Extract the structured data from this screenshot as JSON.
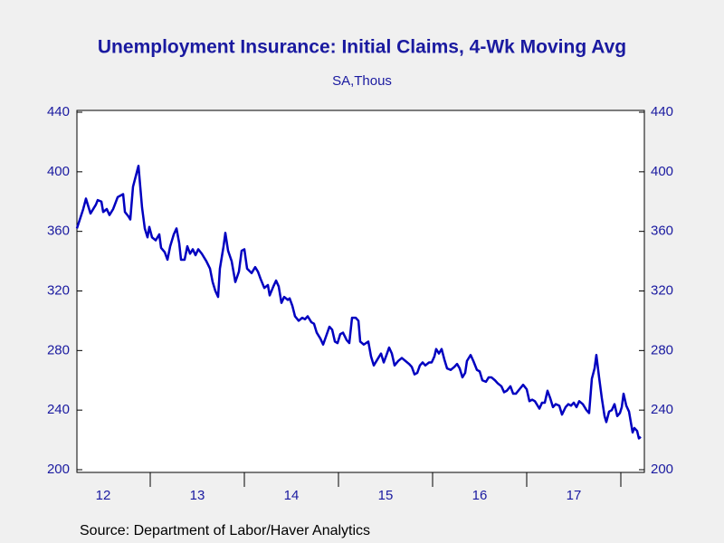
{
  "chart_data": {
    "type": "line",
    "title": "Unemployment Insurance: Initial Claims, 4-Wk Moving Avg",
    "subtitle": "SA,Thous",
    "source": "Source:  Department of Labor/Haver Analytics",
    "x": [
      12.221,
      12.288,
      12.317,
      12.365,
      12.423,
      12.442,
      12.481,
      12.5,
      12.538,
      12.567,
      12.606,
      12.654,
      12.712,
      12.731,
      12.769,
      12.788,
      12.817,
      12.875,
      12.913,
      12.942,
      12.971,
      12.99,
      13.019,
      13.058,
      13.096,
      13.115,
      13.154,
      13.183,
      13.212,
      13.25,
      13.279,
      13.308,
      13.327,
      13.365,
      13.394,
      13.423,
      13.452,
      13.481,
      13.51,
      13.548,
      13.596,
      13.635,
      13.663,
      13.692,
      13.721,
      13.74,
      13.779,
      13.798,
      13.827,
      13.865,
      13.904,
      13.942,
      13.971,
      14.0,
      14.029,
      14.077,
      14.115,
      14.144,
      14.173,
      14.212,
      14.25,
      14.269,
      14.308,
      14.337,
      14.365,
      14.394,
      14.423,
      14.462,
      14.481,
      14.51,
      14.538,
      14.577,
      14.615,
      14.644,
      14.673,
      14.712,
      14.74,
      14.769,
      14.808,
      14.837,
      14.865,
      14.904,
      14.933,
      14.962,
      14.99,
      15.019,
      15.048,
      15.087,
      15.115,
      15.144,
      15.183,
      15.212,
      15.231,
      15.269,
      15.317,
      15.346,
      15.375,
      15.423,
      15.452,
      15.481,
      15.51,
      15.538,
      15.567,
      15.596,
      15.635,
      15.673,
      15.712,
      15.75,
      15.779,
      15.808,
      15.837,
      15.865,
      15.894,
      15.923,
      15.962,
      15.99,
      16.019,
      16.038,
      16.067,
      16.096,
      16.125,
      16.154,
      16.192,
      16.231,
      16.26,
      16.288,
      16.317,
      16.346,
      16.365,
      16.404,
      16.433,
      16.471,
      16.5,
      16.529,
      16.567,
      16.596,
      16.625,
      16.663,
      16.692,
      16.731,
      16.76,
      16.788,
      16.827,
      16.856,
      16.885,
      16.923,
      16.962,
      17.0,
      17.029,
      17.058,
      17.087,
      17.135,
      17.163,
      17.192,
      17.221,
      17.25,
      17.279,
      17.308,
      17.346,
      17.375,
      17.413,
      17.442,
      17.471,
      17.5,
      17.529,
      17.558,
      17.596,
      17.635,
      17.663,
      17.692,
      17.721,
      17.74,
      17.769,
      17.798,
      17.827,
      17.846,
      17.875,
      17.904,
      17.933,
      17.962,
      17.99,
      18.01,
      18.029,
      18.058,
      18.087,
      18.106,
      18.125,
      18.144,
      18.173,
      18.192,
      18.212
    ],
    "series": [
      {
        "name": "Initial Claims, 4-Wk Moving Avg",
        "color": "#0000c0",
        "values": [
          362,
          375,
          382,
          372,
          378,
          381,
          380,
          373,
          375,
          371,
          375,
          383,
          385,
          373,
          370,
          368,
          390,
          404,
          376,
          362,
          356,
          363,
          356,
          354,
          358,
          349,
          346,
          341,
          350,
          358,
          362,
          352,
          341,
          341,
          350,
          345,
          348,
          344,
          348,
          345,
          340,
          335,
          326,
          320,
          316,
          335,
          350,
          359,
          347,
          340,
          326,
          333,
          347,
          348,
          335,
          332,
          336,
          333,
          328,
          322,
          324,
          317,
          323,
          327,
          323,
          312,
          316,
          314,
          315,
          310,
          303,
          300,
          302,
          301,
          303,
          299,
          298,
          292,
          288,
          284,
          289,
          296,
          294,
          286,
          285,
          291,
          292,
          287,
          285,
          302,
          302,
          300,
          286,
          284,
          286,
          276,
          270,
          275,
          278,
          272,
          277,
          282,
          278,
          270,
          273,
          275,
          273,
          271,
          269,
          264,
          265,
          270,
          272,
          270,
          272,
          272,
          276,
          281,
          278,
          281,
          274,
          268,
          267,
          269,
          271,
          268,
          262,
          265,
          273,
          277,
          273,
          267,
          266,
          260,
          259,
          262,
          262,
          260,
          258,
          256,
          252,
          253,
          256,
          251,
          251,
          254,
          257,
          254,
          246,
          247,
          246,
          241,
          245,
          245,
          253,
          248,
          242,
          244,
          243,
          237,
          242,
          244,
          243,
          245,
          242,
          246,
          244,
          240,
          238,
          261,
          268,
          277,
          262,
          248,
          236,
          232,
          239,
          240,
          244,
          236,
          238,
          242,
          251,
          243,
          239,
          232,
          225,
          228,
          226,
          221,
          222
        ]
      }
    ],
    "xlim": [
      12.221,
      18.25
    ],
    "xticks": [
      {
        "value": 12.5,
        "label": "12"
      },
      {
        "value": 13.5,
        "label": "13"
      },
      {
        "value": 14.5,
        "label": "14"
      },
      {
        "value": 15.5,
        "label": "15"
      },
      {
        "value": 16.5,
        "label": "16"
      },
      {
        "value": 17.5,
        "label": "17"
      }
    ],
    "ylim": [
      200,
      440
    ],
    "yticks": [
      200,
      240,
      280,
      320,
      360,
      400,
      440
    ],
    "y2lim": [
      200,
      440
    ],
    "y2ticks": [
      200,
      240,
      280,
      320,
      360,
      400,
      440
    ]
  }
}
